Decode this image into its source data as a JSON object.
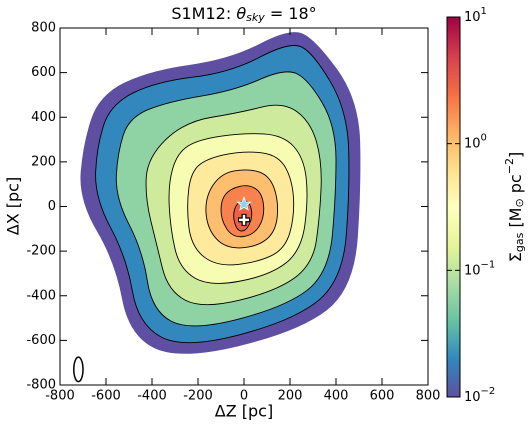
{
  "chart_data": {
    "type": "contour",
    "title": [
      "S1M12:  ",
      "θ",
      "sky",
      " = 18°"
    ],
    "xlabel": "ΔZ [pc]",
    "ylabel": "ΔX [pc]",
    "xlim": [
      -800,
      800
    ],
    "ylim": [
      -800,
      800
    ],
    "xticks": [
      -800,
      -600,
      -400,
      -200,
      0,
      200,
      400,
      600,
      800
    ],
    "yticks": [
      -800,
      -600,
      -400,
      -200,
      0,
      200,
      400,
      600,
      800
    ],
    "colorbar": {
      "label": [
        "Σ",
        "gas",
        " [M",
        "⊙",
        " pc",
        "−2",
        "]"
      ],
      "scale": "log",
      "lim": [
        0.01,
        10
      ],
      "ticks": [
        {
          "value": 0.01,
          "label": "10",
          "exponent": "−2"
        },
        {
          "value": 0.1,
          "label": "10",
          "exponent": "−1"
        },
        {
          "value": 1,
          "label": "10",
          "exponent": "0"
        },
        {
          "value": 10,
          "label": "10",
          "exponent": "1"
        }
      ],
      "colormap": [
        "#5e4fa2",
        "#3288bd",
        "#66c2a5",
        "#abdda4",
        "#e6f598",
        "#ffffbf",
        "#fee08b",
        "#fdae61",
        "#f46d43",
        "#d53e4f",
        "#9e0142"
      ]
    },
    "contours": [
      {
        "level": 0.01,
        "points": [
          [
            -410,
            610
          ],
          [
            -60,
            660
          ],
          [
            200,
            800
          ],
          [
            310,
            750
          ],
          [
            500,
            480
          ],
          [
            510,
            100
          ],
          [
            480,
            -370
          ],
          [
            240,
            -560
          ],
          [
            -280,
            -690
          ],
          [
            -500,
            -580
          ],
          [
            -560,
            -250
          ],
          [
            -720,
            30
          ],
          [
            -700,
            280
          ],
          [
            -630,
            500
          ]
        ]
      },
      {
        "level": 0.02,
        "points": [
          [
            -380,
            560
          ],
          [
            -60,
            600
          ],
          [
            200,
            740
          ],
          [
            300,
            690
          ],
          [
            450,
            430
          ],
          [
            460,
            80
          ],
          [
            430,
            -330
          ],
          [
            220,
            -510
          ],
          [
            -260,
            -640
          ],
          [
            -460,
            -530
          ],
          [
            -510,
            -230
          ],
          [
            -650,
            40
          ],
          [
            -640,
            270
          ],
          [
            -580,
            460
          ]
        ]
      },
      {
        "level": 0.06,
        "points": [
          [
            -330,
            470
          ],
          [
            -40,
            520
          ],
          [
            180,
            620
          ],
          [
            280,
            570
          ],
          [
            400,
            360
          ],
          [
            400,
            60
          ],
          [
            370,
            -300
          ],
          [
            180,
            -450
          ],
          [
            -230,
            -560
          ],
          [
            -400,
            -470
          ],
          [
            -440,
            -200
          ],
          [
            -560,
            40
          ],
          [
            -550,
            240
          ],
          [
            -500,
            400
          ]
        ]
      },
      {
        "level": 0.12,
        "points": [
          [
            -260,
            380
          ],
          [
            -20,
            420
          ],
          [
            170,
            470
          ],
          [
            290,
            380
          ],
          [
            340,
            200
          ],
          [
            330,
            -40
          ],
          [
            300,
            -260
          ],
          [
            140,
            -380
          ],
          [
            -180,
            -460
          ],
          [
            -330,
            -380
          ],
          [
            -380,
            -170
          ],
          [
            -430,
            40
          ],
          [
            -420,
            220
          ]
        ]
      },
      {
        "level": 0.25,
        "points": [
          [
            -200,
            300
          ],
          [
            0,
            330
          ],
          [
            170,
            320
          ],
          [
            260,
            220
          ],
          [
            280,
            40
          ],
          [
            250,
            -200
          ],
          [
            110,
            -310
          ],
          [
            -150,
            -360
          ],
          [
            -280,
            -280
          ],
          [
            -320,
            -100
          ],
          [
            -330,
            100
          ],
          [
            -290,
            240
          ]
        ]
      },
      {
        "level": 0.5,
        "points": [
          [
            -150,
            220
          ],
          [
            10,
            250
          ],
          [
            150,
            230
          ],
          [
            210,
            120
          ],
          [
            220,
            -40
          ],
          [
            180,
            -190
          ],
          [
            60,
            -250
          ],
          [
            -120,
            -270
          ],
          [
            -230,
            -180
          ],
          [
            -250,
            0
          ],
          [
            -230,
            160
          ]
        ]
      },
      {
        "level": 1.0,
        "points": [
          [
            -100,
            150
          ],
          [
            20,
            170
          ],
          [
            110,
            140
          ],
          [
            150,
            30
          ],
          [
            140,
            -110
          ],
          [
            60,
            -180
          ],
          [
            -80,
            -190
          ],
          [
            -160,
            -100
          ],
          [
            -170,
            40
          ]
        ]
      },
      {
        "level": 2.0,
        "points": [
          [
            -60,
            80
          ],
          [
            20,
            100
          ],
          [
            80,
            60
          ],
          [
            90,
            -50
          ],
          [
            40,
            -130
          ],
          [
            -50,
            -140
          ],
          [
            -100,
            -60
          ],
          [
            -100,
            30
          ]
        ]
      },
      {
        "level": 3.0,
        "points": [
          [
            -30,
            20
          ],
          [
            20,
            30
          ],
          [
            40,
            -40
          ],
          [
            10,
            -110
          ],
          [
            -30,
            -110
          ],
          [
            -50,
            -40
          ]
        ]
      }
    ],
    "markers": [
      {
        "symbol": "star",
        "x": 0,
        "y": 10,
        "color": "#7fd8e8"
      },
      {
        "symbol": "plus",
        "x": 0,
        "y": -60,
        "color": "#ffffff"
      }
    ],
    "beam": {
      "x": -720,
      "y": -730,
      "width": 40,
      "height": 110
    }
  }
}
